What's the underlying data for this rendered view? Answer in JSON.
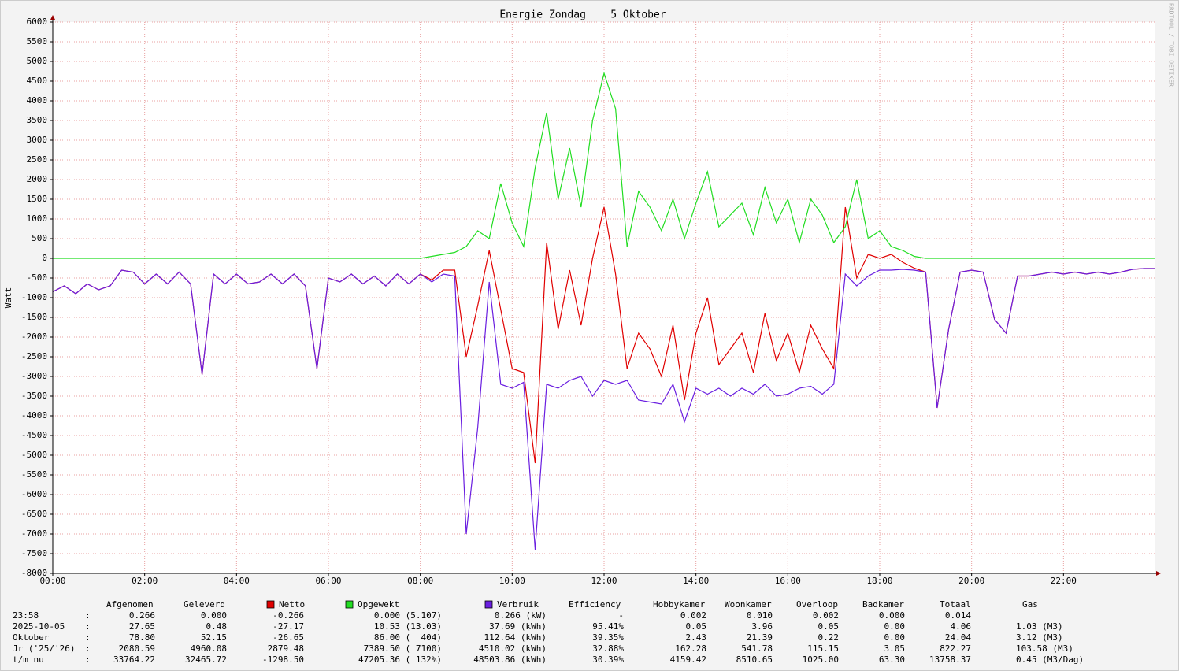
{
  "chart_data": {
    "type": "line",
    "title": "Energie Zondag    5 Oktober",
    "ylabel": "Watt",
    "side_text": "RRDTOOL / TOBI OETIKER",
    "xlim": [
      0,
      24
    ],
    "xticks": [
      {
        "value": 0,
        "label": "00:00"
      },
      {
        "value": 2,
        "label": "02:00"
      },
      {
        "value": 4,
        "label": "04:00"
      },
      {
        "value": 6,
        "label": "06:00"
      },
      {
        "value": 8,
        "label": "08:00"
      },
      {
        "value": 10,
        "label": "10:00"
      },
      {
        "value": 12,
        "label": "12:00"
      },
      {
        "value": 14,
        "label": "14:00"
      },
      {
        "value": 16,
        "label": "16:00"
      },
      {
        "value": 18,
        "label": "18:00"
      },
      {
        "value": 20,
        "label": "20:00"
      },
      {
        "value": 22,
        "label": "22:00"
      }
    ],
    "ylim": [
      -8000,
      6000
    ],
    "yticks": [
      -8000,
      -7500,
      -7000,
      -6500,
      -6000,
      -5500,
      -5000,
      -4500,
      -4000,
      -3500,
      -3000,
      -2500,
      -2000,
      -1500,
      -1000,
      -500,
      0,
      500,
      1000,
      1500,
      2000,
      2500,
      3000,
      3500,
      4000,
      4500,
      5000,
      5500,
      6000
    ],
    "grid": true,
    "hline": {
      "value": 5570,
      "color": "#9c6a5a"
    },
    "x": [
      0,
      0.25,
      0.5,
      0.75,
      1,
      1.25,
      1.5,
      1.75,
      2,
      2.25,
      2.5,
      2.75,
      3,
      3.25,
      3.5,
      3.75,
      4,
      4.25,
      4.5,
      4.75,
      5,
      5.25,
      5.5,
      5.75,
      6,
      6.25,
      6.5,
      6.75,
      7,
      7.25,
      7.5,
      7.75,
      8,
      8.25,
      8.5,
      8.75,
      9,
      9.25,
      9.5,
      9.75,
      10,
      10.25,
      10.5,
      10.75,
      11,
      11.25,
      11.5,
      11.75,
      12,
      12.25,
      12.5,
      12.75,
      13,
      13.25,
      13.5,
      13.75,
      14,
      14.25,
      14.5,
      14.75,
      15,
      15.25,
      15.5,
      15.75,
      16,
      16.25,
      16.5,
      16.75,
      17,
      17.25,
      17.5,
      17.75,
      18,
      18.25,
      18.5,
      18.75,
      19,
      19.25,
      19.5,
      19.75,
      20,
      20.25,
      20.5,
      20.75,
      21,
      21.25,
      21.5,
      21.75,
      22,
      22.25,
      22.5,
      22.75,
      23,
      23.25,
      23.5,
      23.75,
      24
    ],
    "series": [
      {
        "name": "Netto",
        "color": "#e00000",
        "values": [
          -850,
          -700,
          -900,
          -650,
          -800,
          -700,
          -300,
          -350,
          -650,
          -400,
          -650,
          -350,
          -650,
          -2950,
          -400,
          -650,
          -400,
          -650,
          -600,
          -400,
          -650,
          -400,
          -700,
          -2800,
          -500,
          -600,
          -400,
          -650,
          -450,
          -700,
          -400,
          -650,
          -400,
          -550,
          -300,
          -300,
          -2500,
          -1200,
          200,
          -1300,
          -2800,
          -2900,
          -5200,
          400,
          -1800,
          -300,
          -1700,
          0,
          1300,
          -400,
          -2800,
          -1900,
          -2300,
          -3000,
          -1700,
          -3600,
          -1900,
          -1000,
          -2700,
          -2300,
          -1900,
          -2900,
          -1400,
          -2600,
          -1900,
          -2900,
          -1700,
          -2300,
          -2800,
          1300,
          -500,
          100,
          0,
          100,
          -100,
          -250,
          -350,
          -3800,
          -1800,
          -350,
          -300,
          -350,
          -1550,
          -1900,
          -450,
          -450,
          -400,
          -350,
          -400,
          -350,
          -400,
          -350,
          -400,
          -350,
          -280,
          -260,
          -260
        ]
      },
      {
        "name": "Opgewekt",
        "color": "#22dd22",
        "values": [
          0,
          0,
          0,
          0,
          0,
          0,
          0,
          0,
          0,
          0,
          0,
          0,
          0,
          0,
          0,
          0,
          0,
          0,
          0,
          0,
          0,
          0,
          0,
          0,
          0,
          0,
          0,
          0,
          0,
          0,
          0,
          0,
          0,
          50,
          100,
          150,
          300,
          700,
          500,
          1900,
          900,
          300,
          2300,
          3700,
          1500,
          2800,
          1300,
          3500,
          4700,
          3800,
          300,
          1700,
          1300,
          700,
          1500,
          500,
          1400,
          2200,
          800,
          1100,
          1400,
          600,
          1800,
          900,
          1500,
          400,
          1500,
          1100,
          400,
          800,
          2000,
          500,
          700,
          300,
          200,
          50,
          0,
          0,
          0,
          0,
          0,
          0,
          0,
          0,
          0,
          0,
          0,
          0,
          0,
          0,
          0,
          0,
          0,
          0,
          0,
          0,
          0
        ]
      },
      {
        "name": "Verbruik",
        "color": "#6a1ee0",
        "values": [
          -850,
          -700,
          -900,
          -650,
          -800,
          -700,
          -300,
          -350,
          -650,
          -400,
          -650,
          -350,
          -650,
          -2950,
          -400,
          -650,
          -400,
          -650,
          -600,
          -400,
          -650,
          -400,
          -700,
          -2800,
          -500,
          -600,
          -400,
          -650,
          -450,
          -700,
          -400,
          -650,
          -400,
          -600,
          -400,
          -450,
          -7000,
          -4300,
          -600,
          -3200,
          -3300,
          -3150,
          -7400,
          -3200,
          -3300,
          -3100,
          -3000,
          -3500,
          -3100,
          -3200,
          -3100,
          -3600,
          -3650,
          -3700,
          -3200,
          -4150,
          -3300,
          -3450,
          -3300,
          -3500,
          -3300,
          -3450,
          -3200,
          -3500,
          -3450,
          -3300,
          -3250,
          -3450,
          -3200,
          -400,
          -700,
          -450,
          -300,
          -300,
          -280,
          -300,
          -350,
          -3800,
          -1800,
          -350,
          -300,
          -350,
          -1550,
          -1900,
          -450,
          -450,
          -400,
          -350,
          -400,
          -350,
          -400,
          -350,
          -400,
          -350,
          -280,
          -260,
          -260
        ]
      }
    ],
    "legend_table": {
      "header": [
        "Afgenomen",
        "Geleverd",
        "Efficiency",
        "Hobbykamer",
        "Woonkamer",
        "Overloop",
        "Badkamer",
        "Totaal",
        "Gas"
      ],
      "separator": ":",
      "rows": [
        {
          "label": "23:58",
          "values": [
            "0.266",
            "0.000",
            "-0.266",
            "0.000 (5.107)",
            "0.266 (kW)",
            "-",
            "0.002",
            "0.010",
            "0.002",
            "0.000",
            "0.014"
          ]
        },
        {
          "label": "2025-10-05",
          "values": [
            "27.65",
            "0.48",
            "-27.17",
            "10.53 (13.03)",
            "37.69 (kWh)",
            "95.41%",
            "0.05",
            "3.96",
            "0.05",
            "0.00",
            "4.06",
            "1.03 (M3)"
          ]
        },
        {
          "label": "Oktober",
          "values": [
            "78.80",
            "52.15",
            "-26.65",
            "86.00 (  404)",
            "112.64 (kWh)",
            "39.35%",
            "2.43",
            "21.39",
            "0.22",
            "0.00",
            "24.04",
            "3.12 (M3)"
          ]
        },
        {
          "label": "Jr ('25/'26)",
          "values": [
            "2080.59",
            "4960.08",
            "2879.48",
            "7389.50 ( 7100)",
            "4510.02 (kWh)",
            "32.88%",
            "162.28",
            "541.78",
            "115.15",
            "3.05",
            "822.27",
            "103.58 (M3)"
          ]
        },
        {
          "label": "t/m nu",
          "values": [
            "33764.22",
            "32465.72",
            "-1298.50",
            "47205.36 ( 132%)",
            "48503.86 (kWh)",
            "30.39%",
            "4159.42",
            "8510.65",
            "1025.00",
            "63.30",
            "13758.37",
            "0.45 (M3/Dag)"
          ]
        }
      ]
    }
  }
}
